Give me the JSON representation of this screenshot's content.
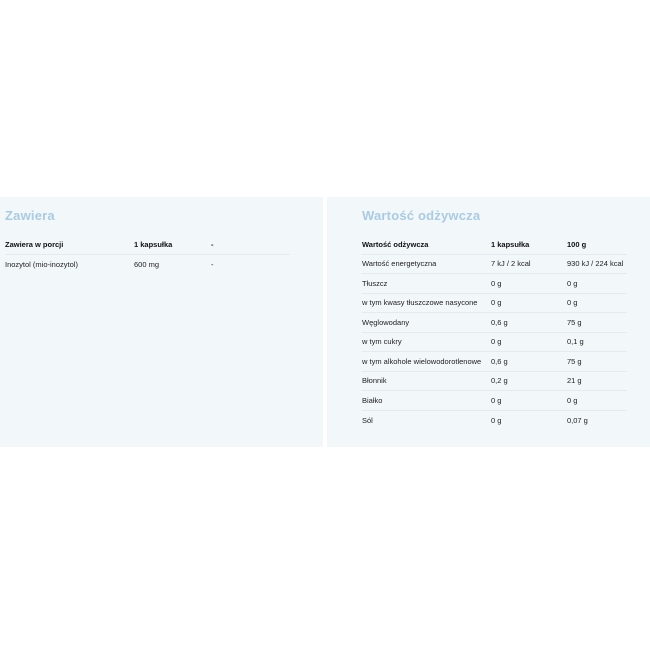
{
  "contains": {
    "title": "Zawiera",
    "headers": [
      "Zawiera w porcji",
      "1 kapsułka",
      "-"
    ],
    "rows": [
      [
        "Inozytol (mio-inozytol)",
        "600 mg",
        "-"
      ]
    ]
  },
  "nutrition": {
    "title": "Wartość odżywcza",
    "headers": [
      "Wartość odżywcza",
      "1 kapsułka",
      "100 g"
    ],
    "rows": [
      [
        "Wartość energetyczna",
        "7 kJ / 2 kcal",
        "930 kJ / 224 kcal"
      ],
      [
        "Tłuszcz",
        "0 g",
        "0 g"
      ],
      [
        "w tym kwasy tłuszczowe nasycone",
        "0 g",
        "0 g"
      ],
      [
        "Węglowodany",
        "0,6 g",
        "75 g"
      ],
      [
        "w tym cukry",
        "0 g",
        "0,1 g"
      ],
      [
        "w tym alkohole wielowodorotlenowe",
        "0,6 g",
        "75 g"
      ],
      [
        "Błonnik",
        "0,2 g",
        "21 g"
      ],
      [
        "Białko",
        "0 g",
        "0 g"
      ],
      [
        "Sól",
        "0 g",
        "0,07 g"
      ]
    ]
  }
}
